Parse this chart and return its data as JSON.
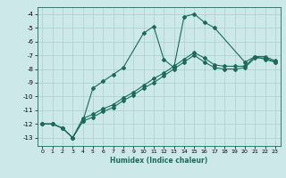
{
  "xlabel": "Humidex (Indice chaleur)",
  "bg_color": "#cde8e8",
  "grid_color": "#aacfcf",
  "line_color": "#1a6b5a",
  "xlim": [
    -0.5,
    23.5
  ],
  "ylim": [
    -13.6,
    -3.5
  ],
  "yticks": [
    -4,
    -5,
    -6,
    -7,
    -8,
    -9,
    -10,
    -11,
    -12,
    -13
  ],
  "xticks": [
    0,
    1,
    2,
    3,
    4,
    5,
    6,
    7,
    8,
    9,
    10,
    11,
    12,
    13,
    14,
    15,
    16,
    17,
    18,
    19,
    20,
    21,
    22,
    23
  ],
  "line1_x": [
    0,
    1,
    2,
    3,
    4,
    5,
    6,
    7,
    8,
    10,
    11,
    12,
    13,
    14,
    15,
    16,
    17,
    20,
    21,
    22,
    23
  ],
  "line1_y": [
    -12.0,
    -12.0,
    -12.3,
    -13.0,
    -11.8,
    -9.4,
    -8.9,
    -8.4,
    -7.9,
    -5.4,
    -4.9,
    -7.3,
    -7.9,
    -4.2,
    -4.0,
    -4.6,
    -5.0,
    -7.5,
    -7.1,
    -7.3,
    -7.5
  ],
  "line2_x": [
    0,
    1,
    2,
    3,
    4,
    5,
    6,
    7,
    8,
    9,
    10,
    11,
    12,
    13,
    14,
    15,
    16,
    17,
    18,
    19,
    20,
    21,
    22,
    23
  ],
  "line2_y": [
    -12.0,
    -12.0,
    -12.3,
    -13.0,
    -11.8,
    -11.5,
    -11.1,
    -10.8,
    -10.3,
    -9.9,
    -9.4,
    -9.0,
    -8.5,
    -8.0,
    -7.5,
    -7.0,
    -7.5,
    -7.9,
    -8.0,
    -8.0,
    -7.9,
    -7.2,
    -7.2,
    -7.5
  ],
  "line3_x": [
    0,
    1,
    2,
    3,
    4,
    5,
    6,
    7,
    8,
    9,
    10,
    11,
    12,
    13,
    14,
    15,
    16,
    17,
    18,
    19,
    20,
    21,
    22,
    23
  ],
  "line3_y": [
    -12.0,
    -12.0,
    -12.3,
    -13.0,
    -11.6,
    -11.3,
    -10.9,
    -10.6,
    -10.1,
    -9.7,
    -9.2,
    -8.7,
    -8.3,
    -7.8,
    -7.3,
    -6.8,
    -7.2,
    -7.7,
    -7.8,
    -7.8,
    -7.8,
    -7.1,
    -7.1,
    -7.4
  ]
}
